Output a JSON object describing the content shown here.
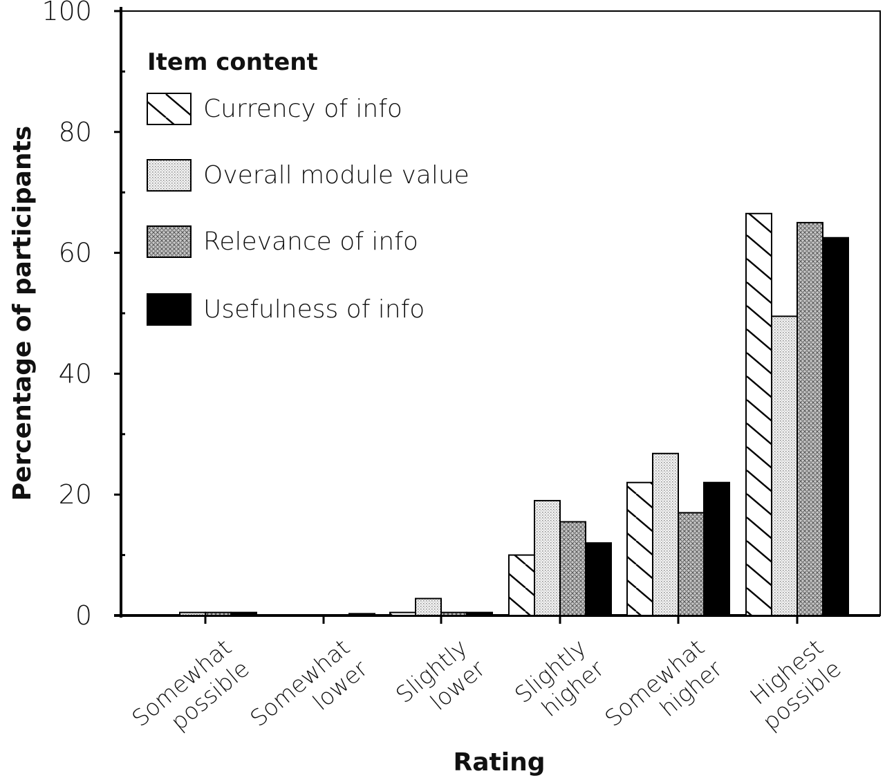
{
  "chart_data": {
    "type": "bar",
    "xlabel": "Rating",
    "ylabel": "Percentage of participants",
    "ylim": [
      0,
      100
    ],
    "yticks": [
      "0",
      "20",
      "40",
      "60",
      "80",
      "100"
    ],
    "categories": [
      [
        "Somewhat",
        "possible"
      ],
      [
        "Somewhat",
        "lower"
      ],
      [
        "Slightly",
        "lower"
      ],
      [
        "Slightly",
        "higher"
      ],
      [
        "Somewhat",
        "higher"
      ],
      [
        "Highest",
        "possible"
      ]
    ],
    "legend": {
      "title": "Item content",
      "position": "top-left"
    },
    "series": [
      {
        "name": "Currency of info",
        "pattern": "diagonal-hatch",
        "values": [
          0,
          0,
          0.5,
          10,
          22,
          66.5
        ]
      },
      {
        "name": "Overall module value",
        "pattern": "light-dots",
        "values": [
          0.5,
          0,
          2.8,
          19,
          26.8,
          49.5
        ]
      },
      {
        "name": "Relevance of info",
        "pattern": "crosshatch",
        "values": [
          0.5,
          0,
          0.5,
          15.5,
          17,
          65
        ]
      },
      {
        "name": "Usefulness of info",
        "pattern": "solid-black",
        "values": [
          0.5,
          0.3,
          0.5,
          12,
          22,
          62.5
        ]
      }
    ],
    "grid": false
  }
}
